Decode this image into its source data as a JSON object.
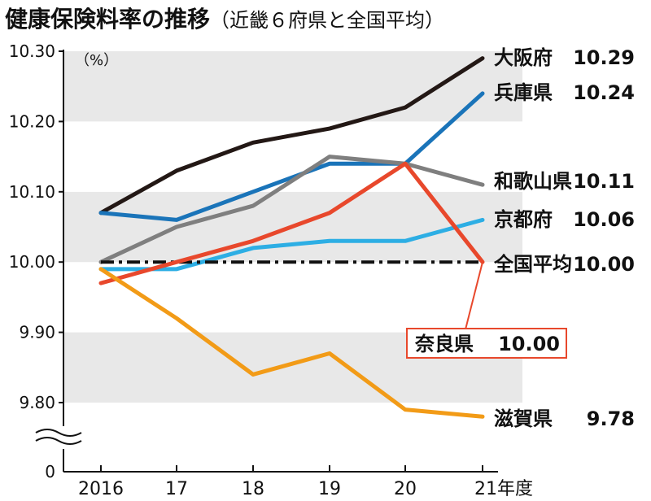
{
  "title_main": "健康保険料率の推移",
  "title_sub": "（近畿６府県と全国平均）",
  "chart_data": {
    "type": "line",
    "x": [
      2016,
      2017,
      2018,
      2019,
      2020,
      2021
    ],
    "x_tick_labels": [
      "2016",
      "17",
      "18",
      "19",
      "20",
      "21年度"
    ],
    "ylim": [
      9.8,
      10.3
    ],
    "y_ticks": [
      9.8,
      9.9,
      10.0,
      10.1,
      10.2,
      10.3
    ],
    "y_tick_labels": [
      "9.80",
      "9.90",
      "10.00",
      "10.10",
      "10.20",
      "10.30"
    ],
    "y_axis_break_label": "0",
    "unit_label": "（%）",
    "grid": "alternating horizontal bands",
    "series": [
      {
        "name": "大阪府",
        "value_label": "10.29",
        "color": "#231815",
        "style": "solid",
        "values": [
          10.07,
          10.13,
          10.17,
          10.19,
          10.22,
          10.29
        ]
      },
      {
        "name": "兵庫県",
        "value_label": "10.24",
        "color": "#1a74b9",
        "style": "solid",
        "values": [
          10.07,
          10.06,
          10.1,
          10.14,
          10.14,
          10.24
        ]
      },
      {
        "name": "和歌山県",
        "value_label": "10.11",
        "color": "#7f7f7f",
        "style": "solid",
        "values": [
          10.0,
          10.05,
          10.08,
          10.15,
          10.14,
          10.11
        ]
      },
      {
        "name": "京都府",
        "value_label": "10.06",
        "color": "#2daee4",
        "style": "solid",
        "values": [
          9.99,
          9.99,
          10.02,
          10.03,
          10.03,
          10.06
        ]
      },
      {
        "name": "全国平均",
        "value_label": "10.00",
        "color": "#111111",
        "style": "dashdot",
        "values": [
          10.0,
          10.0,
          10.0,
          10.0,
          10.0,
          10.0
        ]
      },
      {
        "name": "奈良県",
        "value_label": "10.00",
        "color": "#e8482c",
        "style": "solid",
        "boxed_label": true,
        "values": [
          9.97,
          10.0,
          10.03,
          10.07,
          10.14,
          10.0
        ]
      },
      {
        "name": "滋賀県",
        "value_label": "9.78",
        "color": "#f29b17",
        "style": "solid",
        "values": [
          9.99,
          9.92,
          9.84,
          9.87,
          9.79,
          9.78
        ]
      }
    ]
  }
}
